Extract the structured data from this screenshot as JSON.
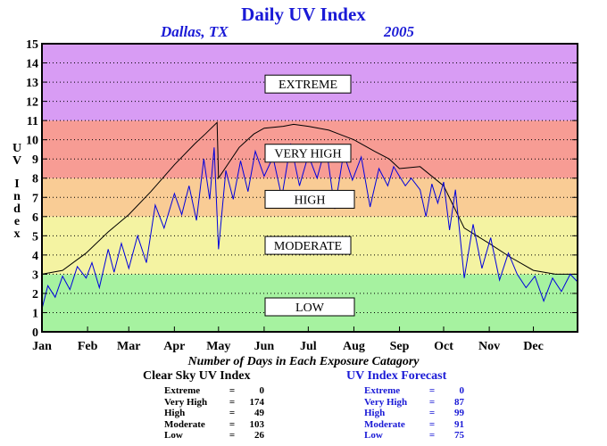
{
  "header": {
    "title": "Daily UV Index",
    "location": "Dallas, TX",
    "year": "2005"
  },
  "chart_data": {
    "type": "line",
    "title": "Daily UV Index",
    "ylabel": "UV Index",
    "ylim": [
      0,
      15
    ],
    "yticks": [
      "0",
      "1",
      "2",
      "3",
      "4",
      "5",
      "6",
      "7",
      "8",
      "9",
      "10",
      "11",
      "12",
      "13",
      "14",
      "15"
    ],
    "x_domain_days": [
      1,
      365
    ],
    "month_labels": [
      "Jan",
      "Feb",
      "Mar",
      "Apr",
      "May",
      "Jun",
      "Jul",
      "Aug",
      "Sep",
      "Oct",
      "Nov",
      "Dec"
    ],
    "grid": "dotted horizontal",
    "bands": [
      {
        "label": "LOW",
        "from": 0,
        "to": 3,
        "color": "#a6f2a0"
      },
      {
        "label": "MODERATE",
        "from": 3,
        "to": 6,
        "color": "#f4f3a2"
      },
      {
        "label": "HIGH",
        "from": 6,
        "to": 8,
        "color": "#f9cc95"
      },
      {
        "label": "VERY HIGH",
        "from": 8,
        "to": 11,
        "color": "#f79c94"
      },
      {
        "label": "EXTREME",
        "from": 11,
        "to": 15,
        "color": "#d89cf4"
      }
    ],
    "series": [
      {
        "name": "Clear Sky UV Index",
        "color": "#000000",
        "x": [
          1,
          15,
          31,
          46,
          60,
          75,
          91,
          105,
          112,
          120,
          121,
          135,
          145,
          152,
          165,
          172,
          182,
          196,
          213,
          227,
          237,
          244,
          258,
          274,
          288,
          305,
          319,
          335,
          350,
          365
        ],
        "y": [
          3.0,
          3.2,
          4.1,
          5.2,
          6.1,
          7.3,
          8.7,
          9.8,
          10.3,
          10.9,
          8.0,
          9.6,
          10.3,
          10.6,
          10.7,
          10.8,
          10.7,
          10.5,
          10.0,
          9.4,
          9.0,
          8.5,
          8.6,
          7.6,
          5.4,
          4.6,
          3.9,
          3.2,
          3.0,
          3.0
        ]
      },
      {
        "name": "UV Index Forecast",
        "color": "#0000dd",
        "x": [
          1,
          5,
          10,
          15,
          20,
          25,
          31,
          35,
          40,
          46,
          50,
          55,
          60,
          66,
          72,
          78,
          84,
          91,
          96,
          101,
          106,
          111,
          115,
          118,
          121,
          126,
          131,
          136,
          141,
          146,
          152,
          158,
          164,
          170,
          176,
          182,
          188,
          194,
          200,
          206,
          212,
          218,
          224,
          230,
          236,
          240,
          244,
          248,
          252,
          258,
          262,
          266,
          270,
          274,
          278,
          282,
          288,
          294,
          300,
          306,
          312,
          318,
          324,
          330,
          336,
          342,
          348,
          354,
          360,
          365
        ],
        "y": [
          1.2,
          2.4,
          1.8,
          2.9,
          2.2,
          3.4,
          2.8,
          3.6,
          2.3,
          4.3,
          3.1,
          4.6,
          3.3,
          5.0,
          3.6,
          6.6,
          5.4,
          7.2,
          6.1,
          7.6,
          5.8,
          9.0,
          6.9,
          9.6,
          4.3,
          8.4,
          6.9,
          8.9,
          7.3,
          9.4,
          8.1,
          9.1,
          7.0,
          9.8,
          7.6,
          9.2,
          8.0,
          9.7,
          6.4,
          9.3,
          7.9,
          9.1,
          6.5,
          8.5,
          7.6,
          8.6,
          8.1,
          7.6,
          8.0,
          7.4,
          6.0,
          7.7,
          6.7,
          7.8,
          5.3,
          7.4,
          2.8,
          5.6,
          3.3,
          4.9,
          2.7,
          4.1,
          3.0,
          2.3,
          2.9,
          1.6,
          2.8,
          2.1,
          3.0,
          2.6
        ]
      }
    ]
  },
  "summary": {
    "heading": "Number of Days in Each Exposure Catagory",
    "clear_sky": {
      "title": "Clear Sky UV Index",
      "rows": [
        {
          "label": "Extreme",
          "value": "0"
        },
        {
          "label": "Very High",
          "value": "174"
        },
        {
          "label": "High",
          "value": "49"
        },
        {
          "label": "Moderate",
          "value": "103"
        },
        {
          "label": "Low",
          "value": "26"
        }
      ]
    },
    "forecast": {
      "title": "UV Index Forecast",
      "rows": [
        {
          "label": "Extreme",
          "value": "0"
        },
        {
          "label": "Very High",
          "value": "87"
        },
        {
          "label": "High",
          "value": "99"
        },
        {
          "label": "Moderate",
          "value": "91"
        },
        {
          "label": "Low",
          "value": "75"
        }
      ]
    }
  }
}
